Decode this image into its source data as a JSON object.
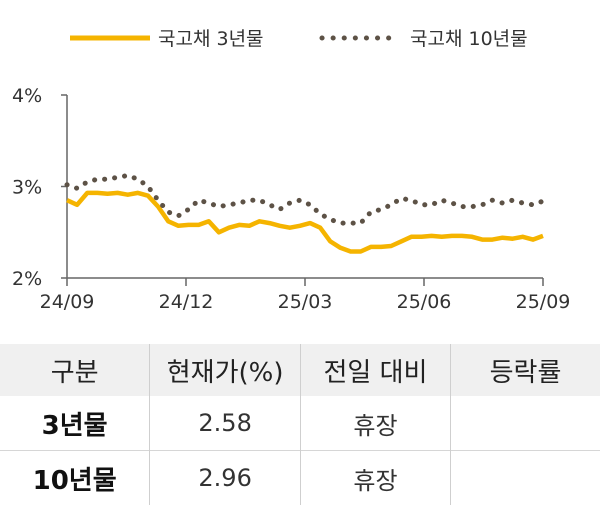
{
  "chart_data": {
    "type": "line",
    "legend": {
      "position": "top"
    },
    "series": [
      {
        "name": "국고채 3년물",
        "color": "#f5b400",
        "style": "solid",
        "values": [
          2.85,
          2.8,
          2.93,
          2.93,
          2.92,
          2.93,
          2.91,
          2.93,
          2.9,
          2.78,
          2.62,
          2.57,
          2.58,
          2.58,
          2.62,
          2.5,
          2.55,
          2.58,
          2.57,
          2.62,
          2.6,
          2.57,
          2.55,
          2.57,
          2.6,
          2.55,
          2.4,
          2.33,
          2.29,
          2.29,
          2.34,
          2.34,
          2.35,
          2.4,
          2.45,
          2.45,
          2.46,
          2.45,
          2.46,
          2.46,
          2.45,
          2.42,
          2.42,
          2.44,
          2.43,
          2.45,
          2.42,
          2.46
        ]
      },
      {
        "name": "국고채 10년물",
        "color": "#5d5246",
        "style": "dotted",
        "values": [
          3.02,
          2.98,
          3.05,
          3.08,
          3.08,
          3.1,
          3.12,
          3.08,
          3.0,
          2.85,
          2.72,
          2.68,
          2.75,
          2.85,
          2.82,
          2.78,
          2.8,
          2.82,
          2.85,
          2.85,
          2.8,
          2.75,
          2.82,
          2.85,
          2.8,
          2.7,
          2.64,
          2.6,
          2.6,
          2.6,
          2.72,
          2.75,
          2.8,
          2.87,
          2.85,
          2.8,
          2.8,
          2.85,
          2.82,
          2.78,
          2.78,
          2.8,
          2.85,
          2.82,
          2.85,
          2.82,
          2.8,
          2.84
        ]
      }
    ],
    "x_ticks": [
      "24/09",
      "24/12",
      "25/03",
      "25/06",
      "25/09"
    ],
    "y_ticks": [
      "4%",
      "3%",
      "2%"
    ],
    "y_tick_values": [
      4,
      3,
      2
    ],
    "ylim": [
      2,
      4
    ],
    "grid": false
  },
  "table": {
    "headers": [
      "구분",
      "현재가(%)",
      "전일 대비",
      "등락률"
    ],
    "rows": [
      {
        "label": "3년물",
        "price": "2.58",
        "change": "휴장",
        "rate": ""
      },
      {
        "label": "10년물",
        "price": "2.96",
        "change": "휴장",
        "rate": ""
      }
    ]
  }
}
